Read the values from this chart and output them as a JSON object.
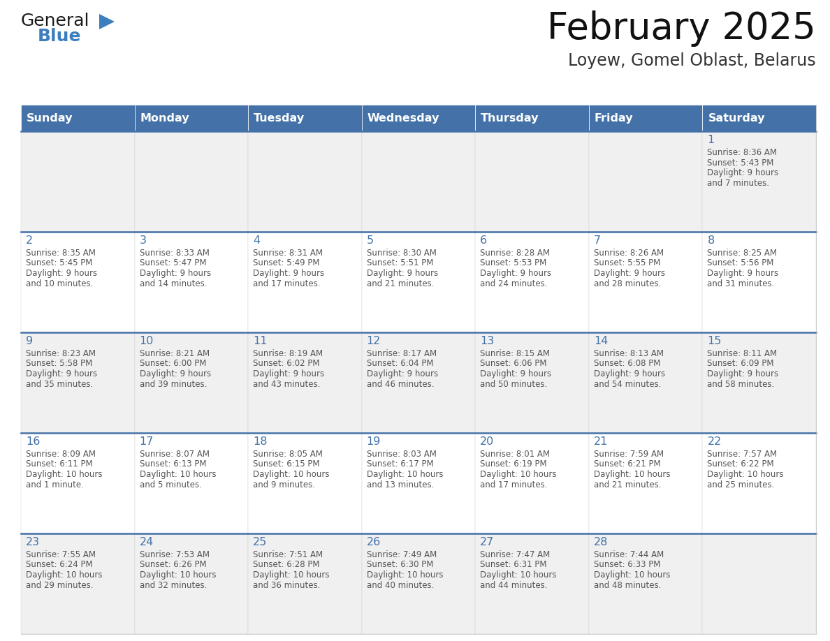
{
  "title": "February 2025",
  "subtitle": "Loyew, Gomel Oblast, Belarus",
  "header_color": "#4472A8",
  "header_text_color": "#FFFFFF",
  "header_days": [
    "Sunday",
    "Monday",
    "Tuesday",
    "Wednesday",
    "Thursday",
    "Friday",
    "Saturday"
  ],
  "bg_color": "#FFFFFF",
  "cell_bg_even": "#F0F0F0",
  "cell_bg_odd": "#FFFFFF",
  "divider_color": "#4472A8",
  "text_color": "#555555",
  "day_num_color": "#4472A8",
  "days": [
    {
      "day": 1,
      "col": 6,
      "row": 0,
      "sunrise": "8:36 AM",
      "sunset": "5:43 PM",
      "daylight": "9 hours",
      "daylight2": "and 7 minutes."
    },
    {
      "day": 2,
      "col": 0,
      "row": 1,
      "sunrise": "8:35 AM",
      "sunset": "5:45 PM",
      "daylight": "9 hours",
      "daylight2": "and 10 minutes."
    },
    {
      "day": 3,
      "col": 1,
      "row": 1,
      "sunrise": "8:33 AM",
      "sunset": "5:47 PM",
      "daylight": "9 hours",
      "daylight2": "and 14 minutes."
    },
    {
      "day": 4,
      "col": 2,
      "row": 1,
      "sunrise": "8:31 AM",
      "sunset": "5:49 PM",
      "daylight": "9 hours",
      "daylight2": "and 17 minutes."
    },
    {
      "day": 5,
      "col": 3,
      "row": 1,
      "sunrise": "8:30 AM",
      "sunset": "5:51 PM",
      "daylight": "9 hours",
      "daylight2": "and 21 minutes."
    },
    {
      "day": 6,
      "col": 4,
      "row": 1,
      "sunrise": "8:28 AM",
      "sunset": "5:53 PM",
      "daylight": "9 hours",
      "daylight2": "and 24 minutes."
    },
    {
      "day": 7,
      "col": 5,
      "row": 1,
      "sunrise": "8:26 AM",
      "sunset": "5:55 PM",
      "daylight": "9 hours",
      "daylight2": "and 28 minutes."
    },
    {
      "day": 8,
      "col": 6,
      "row": 1,
      "sunrise": "8:25 AM",
      "sunset": "5:56 PM",
      "daylight": "9 hours",
      "daylight2": "and 31 minutes."
    },
    {
      "day": 9,
      "col": 0,
      "row": 2,
      "sunrise": "8:23 AM",
      "sunset": "5:58 PM",
      "daylight": "9 hours",
      "daylight2": "and 35 minutes."
    },
    {
      "day": 10,
      "col": 1,
      "row": 2,
      "sunrise": "8:21 AM",
      "sunset": "6:00 PM",
      "daylight": "9 hours",
      "daylight2": "and 39 minutes."
    },
    {
      "day": 11,
      "col": 2,
      "row": 2,
      "sunrise": "8:19 AM",
      "sunset": "6:02 PM",
      "daylight": "9 hours",
      "daylight2": "and 43 minutes."
    },
    {
      "day": 12,
      "col": 3,
      "row": 2,
      "sunrise": "8:17 AM",
      "sunset": "6:04 PM",
      "daylight": "9 hours",
      "daylight2": "and 46 minutes."
    },
    {
      "day": 13,
      "col": 4,
      "row": 2,
      "sunrise": "8:15 AM",
      "sunset": "6:06 PM",
      "daylight": "9 hours",
      "daylight2": "and 50 minutes."
    },
    {
      "day": 14,
      "col": 5,
      "row": 2,
      "sunrise": "8:13 AM",
      "sunset": "6:08 PM",
      "daylight": "9 hours",
      "daylight2": "and 54 minutes."
    },
    {
      "day": 15,
      "col": 6,
      "row": 2,
      "sunrise": "8:11 AM",
      "sunset": "6:09 PM",
      "daylight": "9 hours",
      "daylight2": "and 58 minutes."
    },
    {
      "day": 16,
      "col": 0,
      "row": 3,
      "sunrise": "8:09 AM",
      "sunset": "6:11 PM",
      "daylight": "10 hours",
      "daylight2": "and 1 minute."
    },
    {
      "day": 17,
      "col": 1,
      "row": 3,
      "sunrise": "8:07 AM",
      "sunset": "6:13 PM",
      "daylight": "10 hours",
      "daylight2": "and 5 minutes."
    },
    {
      "day": 18,
      "col": 2,
      "row": 3,
      "sunrise": "8:05 AM",
      "sunset": "6:15 PM",
      "daylight": "10 hours",
      "daylight2": "and 9 minutes."
    },
    {
      "day": 19,
      "col": 3,
      "row": 3,
      "sunrise": "8:03 AM",
      "sunset": "6:17 PM",
      "daylight": "10 hours",
      "daylight2": "and 13 minutes."
    },
    {
      "day": 20,
      "col": 4,
      "row": 3,
      "sunrise": "8:01 AM",
      "sunset": "6:19 PM",
      "daylight": "10 hours",
      "daylight2": "and 17 minutes."
    },
    {
      "day": 21,
      "col": 5,
      "row": 3,
      "sunrise": "7:59 AM",
      "sunset": "6:21 PM",
      "daylight": "10 hours",
      "daylight2": "and 21 minutes."
    },
    {
      "day": 22,
      "col": 6,
      "row": 3,
      "sunrise": "7:57 AM",
      "sunset": "6:22 PM",
      "daylight": "10 hours",
      "daylight2": "and 25 minutes."
    },
    {
      "day": 23,
      "col": 0,
      "row": 4,
      "sunrise": "7:55 AM",
      "sunset": "6:24 PM",
      "daylight": "10 hours",
      "daylight2": "and 29 minutes."
    },
    {
      "day": 24,
      "col": 1,
      "row": 4,
      "sunrise": "7:53 AM",
      "sunset": "6:26 PM",
      "daylight": "10 hours",
      "daylight2": "and 32 minutes."
    },
    {
      "day": 25,
      "col": 2,
      "row": 4,
      "sunrise": "7:51 AM",
      "sunset": "6:28 PM",
      "daylight": "10 hours",
      "daylight2": "and 36 minutes."
    },
    {
      "day": 26,
      "col": 3,
      "row": 4,
      "sunrise": "7:49 AM",
      "sunset": "6:30 PM",
      "daylight": "10 hours",
      "daylight2": "and 40 minutes."
    },
    {
      "day": 27,
      "col": 4,
      "row": 4,
      "sunrise": "7:47 AM",
      "sunset": "6:31 PM",
      "daylight": "10 hours",
      "daylight2": "and 44 minutes."
    },
    {
      "day": 28,
      "col": 5,
      "row": 4,
      "sunrise": "7:44 AM",
      "sunset": "6:33 PM",
      "daylight": "10 hours",
      "daylight2": "and 48 minutes."
    }
  ]
}
